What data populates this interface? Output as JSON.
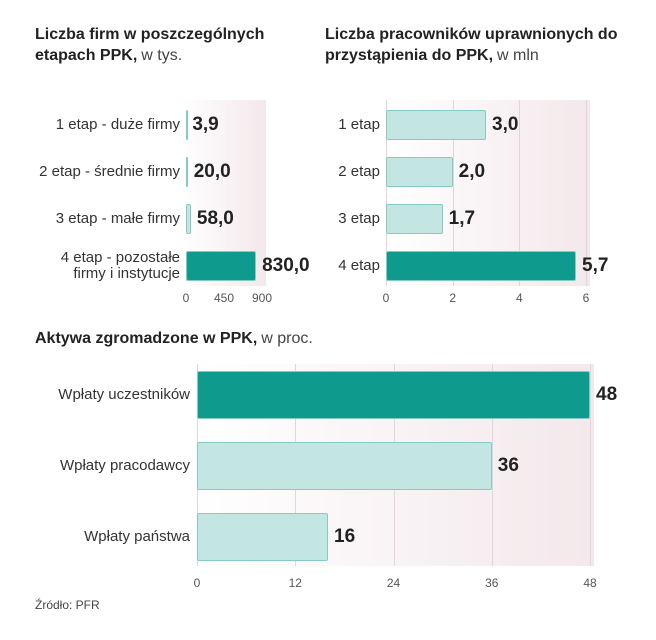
{
  "chart_data": [
    {
      "type": "bar",
      "orientation": "horizontal",
      "title": "Liczba firm w poszczególnych etapach PPK,",
      "unit": "w tys.",
      "categories": [
        "1 etap - duże firmy",
        "2 etap - średnie firmy",
        "3 etap - małe firmy",
        "4 etap - pozostałe firmy i instytucje"
      ],
      "values": [
        3.9,
        20.0,
        58.0,
        830.0
      ],
      "value_labels": [
        "3,9",
        "20,0",
        "58,0",
        "830,0"
      ],
      "colors": [
        "#c4e6e2",
        "#c4e6e2",
        "#c4e6e2",
        "#0e9b8d"
      ],
      "xlim": [
        0,
        900
      ],
      "xticks": [
        0,
        450,
        900
      ],
      "grid": false
    },
    {
      "type": "bar",
      "orientation": "horizontal",
      "title": "Liczba pracowników uprawnionych do przystąpienia do PPK,",
      "unit": "w mln",
      "categories": [
        "1 etap",
        "2 etap",
        "3 etap",
        "4 etap"
      ],
      "values": [
        3.0,
        2.0,
        1.7,
        5.7
      ],
      "value_labels": [
        "3,0",
        "2,0",
        "1,7",
        "5,7"
      ],
      "colors": [
        "#c4e6e2",
        "#c4e6e2",
        "#c4e6e2",
        "#0e9b8d"
      ],
      "xlim": [
        0,
        6
      ],
      "xticks": [
        0,
        2,
        4,
        6
      ],
      "grid": true
    },
    {
      "type": "bar",
      "orientation": "horizontal",
      "title": "Aktywa zgromadzone w PPK,",
      "unit": "w proc.",
      "categories": [
        "Wpłaty uczestników",
        "Wpłaty pracodawcy",
        "Wpłaty państwa"
      ],
      "values": [
        48,
        36,
        16
      ],
      "colors": [
        "#0e9b8d",
        "#c4e6e2",
        "#c4e6e2"
      ],
      "xlim": [
        0,
        48
      ],
      "xticks": [
        0,
        12,
        24,
        36,
        48
      ],
      "grid": true
    }
  ],
  "source": "Źródło: PFR"
}
